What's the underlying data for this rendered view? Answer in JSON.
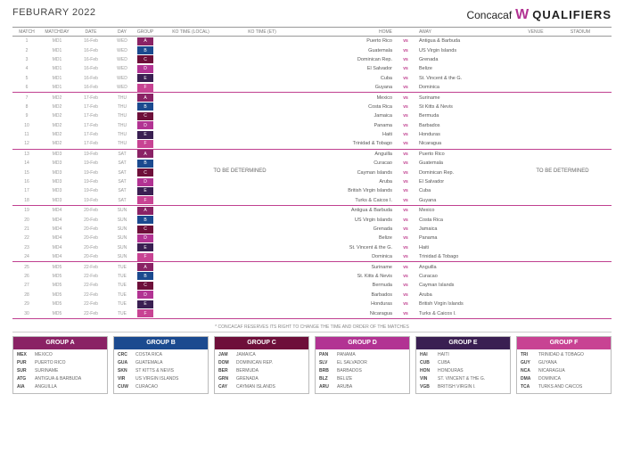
{
  "header": {
    "title": "FEBURARY 2022",
    "brand_c": "Concacaf",
    "brand_w": "W",
    "brand_q": "QUALIFIERS"
  },
  "columns": {
    "match": "MATCH",
    "md": "MATCHDAY",
    "date": "DATE",
    "day": "DAY",
    "group": "GROUP",
    "kol": "KO TIME (LOCAL)",
    "koe": "KO TIME (ET)",
    "home": "HOME",
    "away": "AWAY",
    "venue": "VENUE",
    "stad": "STADIUM"
  },
  "tbd": "TO BE DETERMINED",
  "note": "* CONCACAF RESERVES ITS RIGHT TO CHANGE THE TIME AND ORDER OF THE MATCHES",
  "group_colors": {
    "A": "#8a2265",
    "B": "#1b4a8f",
    "C": "#6e0f3a",
    "D": "#b23393",
    "E": "#3a1f52",
    "F": "#c84393"
  },
  "rows": [
    {
      "n": "1",
      "md": "MD1",
      "date": "16-Feb",
      "day": "WED",
      "g": "A",
      "h": "Puerto Rico",
      "a": "Antigua & Barbuda"
    },
    {
      "n": "2",
      "md": "MD1",
      "date": "16-Feb",
      "day": "WED",
      "g": "B",
      "h": "Guatemala",
      "a": "US Virgin Islands"
    },
    {
      "n": "3",
      "md": "MD1",
      "date": "16-Feb",
      "day": "WED",
      "g": "C",
      "h": "Dominican Rep.",
      "a": "Grenada"
    },
    {
      "n": "4",
      "md": "MD1",
      "date": "16-Feb",
      "day": "WED",
      "g": "D",
      "h": "El Salvador",
      "a": "Belize"
    },
    {
      "n": "5",
      "md": "MD1",
      "date": "16-Feb",
      "day": "WED",
      "g": "E",
      "h": "Cuba",
      "a": "St. Vincent & the G."
    },
    {
      "n": "6",
      "md": "MD1",
      "date": "16-Feb",
      "day": "WED",
      "g": "F",
      "h": "Guyana",
      "a": "Dominica",
      "sep": true
    },
    {
      "n": "7",
      "md": "MD2",
      "date": "17-Feb",
      "day": "THU",
      "g": "A",
      "h": "Mexico",
      "a": "Suriname"
    },
    {
      "n": "8",
      "md": "MD2",
      "date": "17-Feb",
      "day": "THU",
      "g": "B",
      "h": "Costa Rica",
      "a": "St Kitts & Nevis"
    },
    {
      "n": "9",
      "md": "MD2",
      "date": "17-Feb",
      "day": "THU",
      "g": "C",
      "h": "Jamaica",
      "a": "Bermuda"
    },
    {
      "n": "10",
      "md": "MD2",
      "date": "17-Feb",
      "day": "THU",
      "g": "D",
      "h": "Panama",
      "a": "Barbados"
    },
    {
      "n": "11",
      "md": "MD2",
      "date": "17-Feb",
      "day": "THU",
      "g": "E",
      "h": "Haiti",
      "a": "Honduras"
    },
    {
      "n": "12",
      "md": "MD2",
      "date": "17-Feb",
      "day": "THU",
      "g": "F",
      "h": "Trinidad & Tobago",
      "a": "Nicaragua",
      "sep": true
    },
    {
      "n": "13",
      "md": "MD3",
      "date": "19-Feb",
      "day": "SAT",
      "g": "A",
      "h": "Anguilla",
      "a": "Puerto Rico"
    },
    {
      "n": "14",
      "md": "MD3",
      "date": "19-Feb",
      "day": "SAT",
      "g": "B",
      "h": "Curacao",
      "a": "Guatemala"
    },
    {
      "n": "15",
      "md": "MD3",
      "date": "19-Feb",
      "day": "SAT",
      "g": "C",
      "h": "Cayman Islands",
      "a": "Dominican Rep."
    },
    {
      "n": "16",
      "md": "MD3",
      "date": "19-Feb",
      "day": "SAT",
      "g": "D",
      "h": "Aruba",
      "a": "El Salvador"
    },
    {
      "n": "17",
      "md": "MD3",
      "date": "19-Feb",
      "day": "SAT",
      "g": "E",
      "h": "British Virgin Islands",
      "a": "Cuba"
    },
    {
      "n": "18",
      "md": "MD3",
      "date": "19-Feb",
      "day": "SAT",
      "g": "F",
      "h": "Turks & Caicos I.",
      "a": "Guyana",
      "sep": true
    },
    {
      "n": "19",
      "md": "MD4",
      "date": "20-Feb",
      "day": "SUN",
      "g": "A",
      "h": "Antigua & Barbuda",
      "a": "Mexico"
    },
    {
      "n": "20",
      "md": "MD4",
      "date": "20-Feb",
      "day": "SUN",
      "g": "B",
      "h": "US Virgin Islands",
      "a": "Costa Rica"
    },
    {
      "n": "21",
      "md": "MD4",
      "date": "20-Feb",
      "day": "SUN",
      "g": "C",
      "h": "Grenada",
      "a": "Jamaica"
    },
    {
      "n": "22",
      "md": "MD4",
      "date": "20-Feb",
      "day": "SUN",
      "g": "D",
      "h": "Belize",
      "a": "Panama"
    },
    {
      "n": "23",
      "md": "MD4",
      "date": "20-Feb",
      "day": "SUN",
      "g": "E",
      "h": "St. Vincent & the G.",
      "a": "Haiti"
    },
    {
      "n": "24",
      "md": "MD4",
      "date": "20-Feb",
      "day": "SUN",
      "g": "F",
      "h": "Dominica",
      "a": "Trinidad & Tobago",
      "sep": true
    },
    {
      "n": "25",
      "md": "MD5",
      "date": "22-Feb",
      "day": "TUE",
      "g": "A",
      "h": "Suriname",
      "a": "Anguilla"
    },
    {
      "n": "26",
      "md": "MD5",
      "date": "22-Feb",
      "day": "TUE",
      "g": "B",
      "h": "St. Kitts & Nevis",
      "a": "Curacao"
    },
    {
      "n": "27",
      "md": "MD5",
      "date": "22-Feb",
      "day": "TUE",
      "g": "C",
      "h": "Bermuda",
      "a": "Cayman Islands"
    },
    {
      "n": "28",
      "md": "MD5",
      "date": "22-Feb",
      "day": "TUE",
      "g": "D",
      "h": "Barbados",
      "a": "Aruba"
    },
    {
      "n": "29",
      "md": "MD5",
      "date": "22-Feb",
      "day": "TUE",
      "g": "E",
      "h": "Honduras",
      "a": "British Virgin Islands"
    },
    {
      "n": "30",
      "md": "MD5",
      "date": "22-Feb",
      "day": "TUE",
      "g": "F",
      "h": "Nicaragua",
      "a": "Turks & Caicos I.",
      "sep": true
    }
  ],
  "groups": [
    {
      "name": "GROUP A",
      "color": "#8a2265",
      "teams": [
        [
          "MEX",
          "MEXICO"
        ],
        [
          "PUR",
          "PUERTO RICO"
        ],
        [
          "SUR",
          "SURINAME"
        ],
        [
          "ATG",
          "ANTIGUA & BARBUDA"
        ],
        [
          "AIA",
          "ANGUILLA"
        ]
      ]
    },
    {
      "name": "GROUP B",
      "color": "#1b4a8f",
      "teams": [
        [
          "CRC",
          "COSTA RICA"
        ],
        [
          "GUA",
          "GUATEMALA"
        ],
        [
          "SKN",
          "ST KITTS & NEVIS"
        ],
        [
          "VIR",
          "US VIRGIN ISLANDS"
        ],
        [
          "CUW",
          "CURACAO"
        ]
      ]
    },
    {
      "name": "GROUP C",
      "color": "#6e0f3a",
      "teams": [
        [
          "JAM",
          "JAMAICA"
        ],
        [
          "DOM",
          "DOMINICAN REP."
        ],
        [
          "BER",
          "BERMUDA"
        ],
        [
          "GRN",
          "GRENADA"
        ],
        [
          "CAY",
          "CAYMAN ISLANDS"
        ]
      ]
    },
    {
      "name": "GROUP D",
      "color": "#b23393",
      "teams": [
        [
          "PAN",
          "PANAMA"
        ],
        [
          "SLV",
          "EL SALVADOR"
        ],
        [
          "BRB",
          "BARBADOS"
        ],
        [
          "BLZ",
          "BELIZE"
        ],
        [
          "ARU",
          "ARUBA"
        ]
      ]
    },
    {
      "name": "GROUP E",
      "color": "#3a1f52",
      "teams": [
        [
          "HAI",
          "HAITI"
        ],
        [
          "CUB",
          "CUBA"
        ],
        [
          "HON",
          "HONDURAS"
        ],
        [
          "VIN",
          "ST. VINCENT & THE G."
        ],
        [
          "VGB",
          "BRITISH VIRGIN I."
        ]
      ]
    },
    {
      "name": "GROUP F",
      "color": "#c84393",
      "teams": [
        [
          "TRI",
          "TRINIDAD & TOBAGO"
        ],
        [
          "GUY",
          "GUYANA"
        ],
        [
          "NCA",
          "NICARAGUA"
        ],
        [
          "DMA",
          "DOMINICA"
        ],
        [
          "TCA",
          "TURKS AND CAICOS"
        ]
      ]
    }
  ]
}
